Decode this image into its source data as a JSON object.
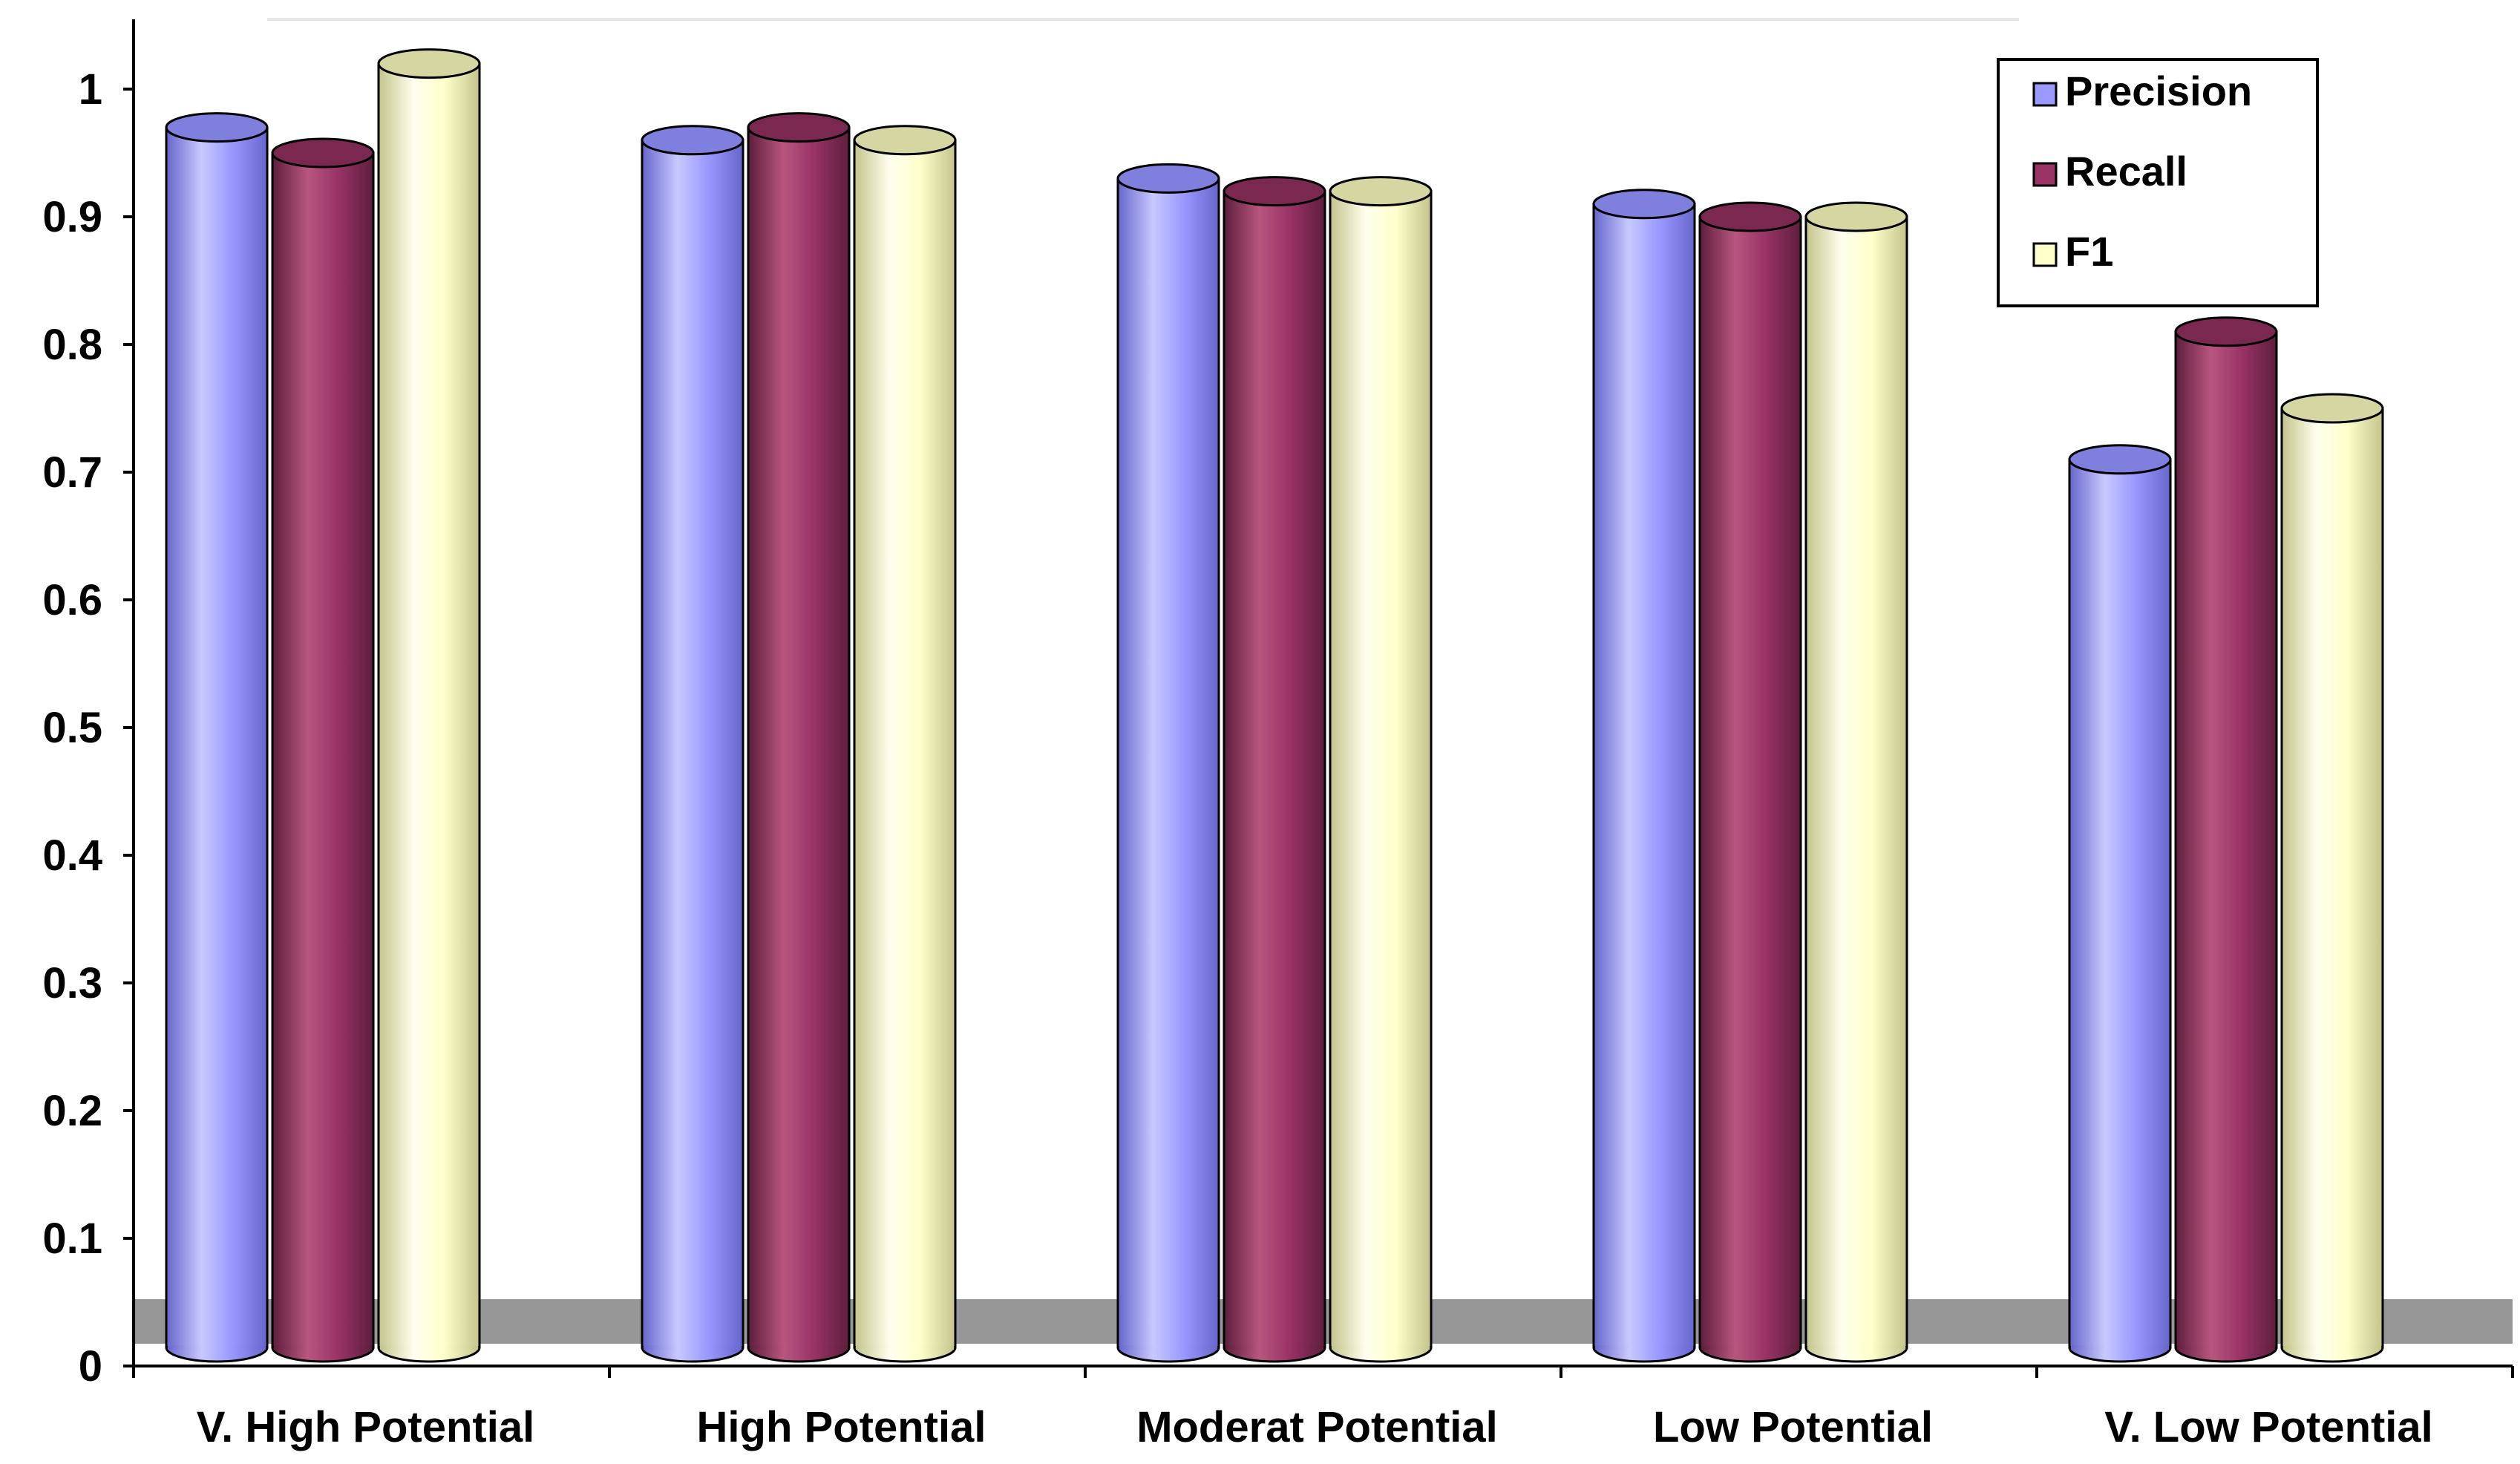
{
  "chart_data": {
    "type": "bar",
    "style": "3d-cylinder",
    "title": "",
    "xlabel": "",
    "ylabel": "",
    "categories": [
      "V. High Potential",
      "High Potential",
      "Moderat Potential",
      "Low Potential",
      "V. Low Potential"
    ],
    "series": [
      {
        "name": "Precision",
        "values": [
          0.97,
          0.96,
          0.93,
          0.91,
          0.71
        ]
      },
      {
        "name": "Recall",
        "values": [
          0.95,
          0.97,
          0.92,
          0.9,
          0.81
        ]
      },
      {
        "name": "F1",
        "values": [
          1.02,
          0.96,
          0.92,
          0.9,
          0.75
        ]
      }
    ],
    "ylim": [
      0,
      1.05
    ],
    "yticks": [
      "0",
      "0.1",
      "0.2",
      "0.3",
      "0.4",
      "0.5",
      "0.6",
      "0.7",
      "0.8",
      "0.9",
      "1"
    ],
    "grid": false,
    "legend_position": "top-right",
    "colors": {
      "Precision": "#9999ff",
      "Recall": "#993366",
      "F1": "#ffffcc",
      "floor": "#969696",
      "axis": "#000000"
    }
  }
}
